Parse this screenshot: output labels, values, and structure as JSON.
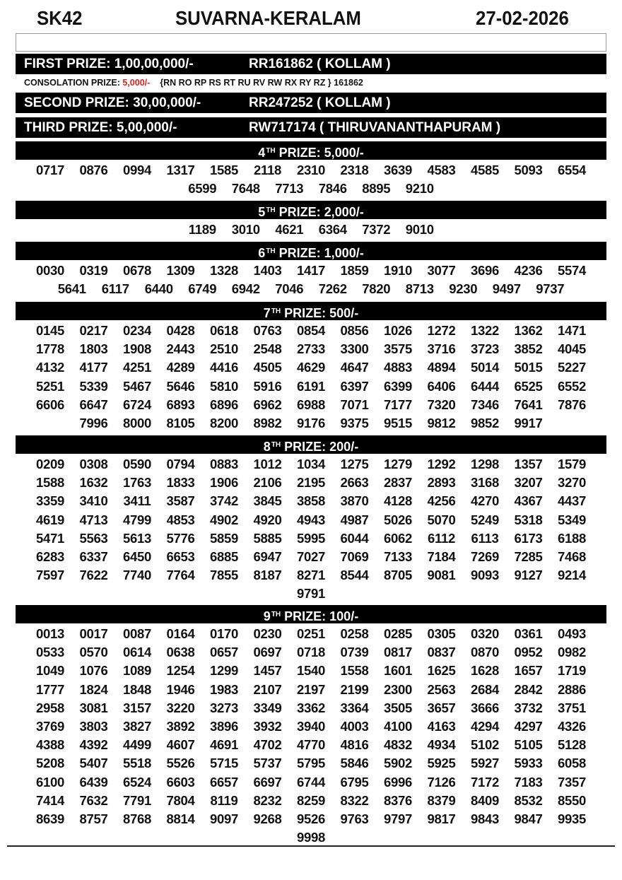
{
  "header": {
    "code": "SK42",
    "title": "SUVARNA-KERALAM",
    "date": "27-02-2026"
  },
  "first": {
    "label": "FIRST PRIZE: 1,00,00,000/-",
    "ticket": "RR161862 ( KOLLAM )"
  },
  "consolation": {
    "label": "CONSOLATION PRIZE: ",
    "amount": "5,000/-",
    "series": "{RN RO RP RS RT RU RV RW RX RY RZ } 161862",
    "amount_color": "#e02020"
  },
  "second": {
    "label": "SECOND PRIZE: 30,00,000/-",
    "ticket": "RR247252 ( KOLLAM )"
  },
  "third": {
    "label": "THIRD PRIZE: 5,00,000/-",
    "ticket": "RW717174 ( THIRUVANANTHAPURAM )"
  },
  "sections": [
    {
      "ord": "4",
      "sup": "TH",
      "label": " PRIZE: 5,000/-",
      "numbers": [
        "0717",
        "0876",
        "0994",
        "1317",
        "1585",
        "2118",
        "2310",
        "2318",
        "3639",
        "4583",
        "4585",
        "5093",
        "6554",
        "6599",
        "7648",
        "7713",
        "7846",
        "8895",
        "9210"
      ]
    },
    {
      "ord": "5",
      "sup": "TH",
      "label": " PRIZE: 2,000/-",
      "numbers": [
        "1189",
        "3010",
        "4621",
        "6364",
        "7372",
        "9010"
      ]
    },
    {
      "ord": "6",
      "sup": "TH",
      "label": " PRIZE: 1,000/-",
      "numbers": [
        "0030",
        "0319",
        "0678",
        "1309",
        "1328",
        "1403",
        "1417",
        "1859",
        "1910",
        "3077",
        "3696",
        "4236",
        "5574",
        "5641",
        "6117",
        "6440",
        "6749",
        "6942",
        "7046",
        "7262",
        "7820",
        "8713",
        "9230",
        "9497",
        "9737"
      ]
    },
    {
      "ord": "7",
      "sup": "TH",
      "label": " PRIZE: 500/-",
      "numbers": [
        "0145",
        "0217",
        "0234",
        "0428",
        "0618",
        "0763",
        "0854",
        "0856",
        "1026",
        "1272",
        "1322",
        "1362",
        "1471",
        "1778",
        "1803",
        "1908",
        "2443",
        "2510",
        "2548",
        "2733",
        "3300",
        "3575",
        "3716",
        "3723",
        "3852",
        "4045",
        "4132",
        "4177",
        "4251",
        "4289",
        "4416",
        "4505",
        "4629",
        "4647",
        "4883",
        "4894",
        "5014",
        "5015",
        "5227",
        "5251",
        "5339",
        "5467",
        "5646",
        "5810",
        "5916",
        "6191",
        "6397",
        "6399",
        "6406",
        "6444",
        "6525",
        "6552",
        "6606",
        "6647",
        "6724",
        "6893",
        "6896",
        "6962",
        "6988",
        "7071",
        "7177",
        "7320",
        "7346",
        "7641",
        "7876",
        "7996",
        "8000",
        "8105",
        "8200",
        "8982",
        "9176",
        "9375",
        "9515",
        "9812",
        "9852",
        "9917"
      ]
    },
    {
      "ord": "8",
      "sup": "TH",
      "label": " PRIZE: 200/-",
      "numbers": [
        "0209",
        "0308",
        "0590",
        "0794",
        "0883",
        "1012",
        "1034",
        "1275",
        "1279",
        "1292",
        "1298",
        "1357",
        "1579",
        "1588",
        "1632",
        "1763",
        "1833",
        "1906",
        "2106",
        "2195",
        "2663",
        "2837",
        "2893",
        "3168",
        "3207",
        "3270",
        "3359",
        "3410",
        "3411",
        "3587",
        "3742",
        "3845",
        "3858",
        "3870",
        "4128",
        "4256",
        "4270",
        "4367",
        "4437",
        "4619",
        "4713",
        "4799",
        "4853",
        "4902",
        "4920",
        "4943",
        "4987",
        "5026",
        "5070",
        "5249",
        "5318",
        "5349",
        "5471",
        "5563",
        "5613",
        "5776",
        "5859",
        "5885",
        "5995",
        "6044",
        "6062",
        "6112",
        "6113",
        "6173",
        "6188",
        "6283",
        "6337",
        "6450",
        "6653",
        "6885",
        "6947",
        "7027",
        "7069",
        "7133",
        "7184",
        "7269",
        "7285",
        "7468",
        "7597",
        "7622",
        "7740",
        "7764",
        "7855",
        "8187",
        "8271",
        "8544",
        "8705",
        "9081",
        "9093",
        "9127",
        "9214",
        "9791"
      ]
    },
    {
      "ord": "9",
      "sup": "TH",
      "label": " PRIZE: 100/-",
      "numbers": [
        "0013",
        "0017",
        "0087",
        "0164",
        "0170",
        "0230",
        "0251",
        "0258",
        "0285",
        "0305",
        "0320",
        "0361",
        "0493",
        "0533",
        "0570",
        "0614",
        "0638",
        "0657",
        "0697",
        "0718",
        "0739",
        "0817",
        "0837",
        "0870",
        "0952",
        "0982",
        "1049",
        "1076",
        "1089",
        "1254",
        "1299",
        "1457",
        "1540",
        "1558",
        "1601",
        "1625",
        "1628",
        "1657",
        "1719",
        "1777",
        "1824",
        "1848",
        "1946",
        "1983",
        "2107",
        "2197",
        "2199",
        "2300",
        "2563",
        "2684",
        "2842",
        "2886",
        "2958",
        "3081",
        "3157",
        "3220",
        "3273",
        "3349",
        "3362",
        "3364",
        "3505",
        "3657",
        "3666",
        "3732",
        "3751",
        "3769",
        "3803",
        "3827",
        "3892",
        "3896",
        "3932",
        "3940",
        "4003",
        "4100",
        "4163",
        "4294",
        "4297",
        "4326",
        "4388",
        "4392",
        "4499",
        "4607",
        "4691",
        "4702",
        "4770",
        "4816",
        "4832",
        "4934",
        "5102",
        "5105",
        "5128",
        "5208",
        "5407",
        "5518",
        "5526",
        "5715",
        "5737",
        "5795",
        "5846",
        "5902",
        "5925",
        "5927",
        "5933",
        "6058",
        "6100",
        "6439",
        "6524",
        "6603",
        "6657",
        "6697",
        "6744",
        "6795",
        "6996",
        "7126",
        "7172",
        "7183",
        "7357",
        "7414",
        "7632",
        "7791",
        "7804",
        "8119",
        "8232",
        "8259",
        "8322",
        "8376",
        "8379",
        "8409",
        "8532",
        "8550",
        "8639",
        "8757",
        "8768",
        "8814",
        "9097",
        "9268",
        "9526",
        "9763",
        "9797",
        "9817",
        "9843",
        "9847",
        "9935",
        "9998"
      ]
    }
  ]
}
